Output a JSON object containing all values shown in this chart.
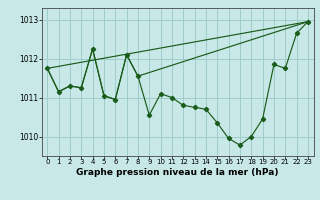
{
  "title": "Graphe pression niveau de la mer (hPa)",
  "bg_color": "#c8e8e8",
  "grid_color": "#a0cccc",
  "line_color": "#1a5c1a",
  "xlim": [
    -0.5,
    23.5
  ],
  "ylim": [
    1009.5,
    1013.3
  ],
  "yticks": [
    1010,
    1011,
    1012,
    1013
  ],
  "xticks": [
    0,
    1,
    2,
    3,
    4,
    5,
    6,
    7,
    8,
    9,
    10,
    11,
    12,
    13,
    14,
    15,
    16,
    17,
    18,
    19,
    20,
    21,
    22,
    23
  ],
  "line1_x": [
    0,
    1,
    2,
    3,
    4,
    5,
    6,
    7,
    8,
    9,
    10,
    11,
    12,
    13,
    14,
    15,
    16,
    17,
    18,
    19,
    20,
    21,
    22,
    23
  ],
  "line1_y": [
    1011.75,
    1011.15,
    1011.3,
    1011.25,
    1012.25,
    1011.05,
    1010.95,
    1012.1,
    1011.55,
    1010.55,
    1011.1,
    1011.0,
    1010.8,
    1010.75,
    1010.7,
    1010.35,
    1009.95,
    1009.78,
    1010.0,
    1010.45,
    1011.85,
    1011.75,
    1012.65,
    1012.95
  ],
  "line2_x": [
    0,
    1,
    2,
    3,
    4,
    5,
    6,
    7,
    8,
    23
  ],
  "line2_y": [
    1011.75,
    1011.15,
    1011.3,
    1011.25,
    1012.25,
    1011.05,
    1010.95,
    1012.1,
    1011.55,
    1012.95
  ],
  "line3_x": [
    0,
    23
  ],
  "line3_y": [
    1011.75,
    1012.95
  ],
  "title_fontsize": 6.5
}
